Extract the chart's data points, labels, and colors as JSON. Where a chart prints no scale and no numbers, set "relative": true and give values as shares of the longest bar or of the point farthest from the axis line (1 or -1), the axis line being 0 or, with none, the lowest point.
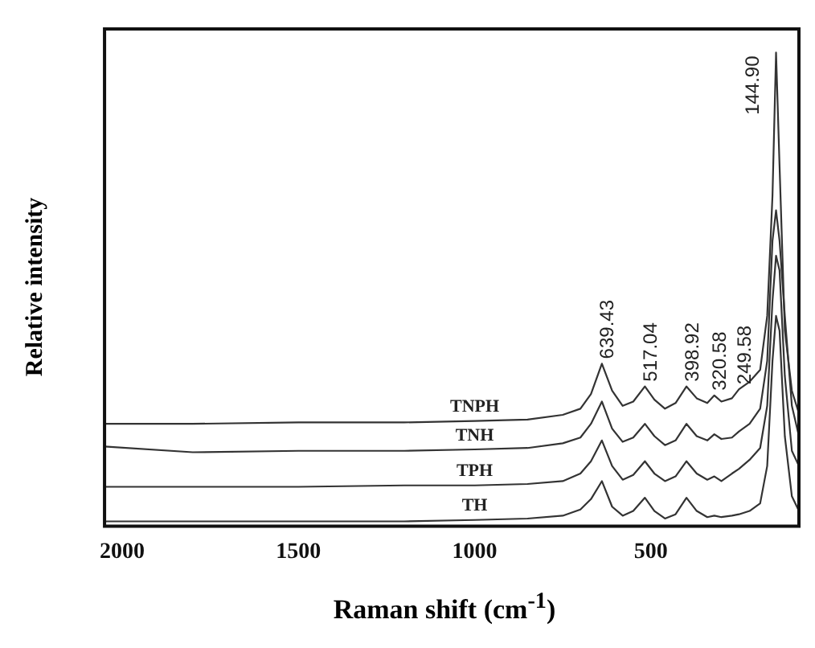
{
  "chart_data": {
    "type": "line",
    "xlabel": "Raman shift (cm$^{-1}$)",
    "ylabel": "Relative intensity",
    "relative": true,
    "xlim": [
      2050,
      80
    ],
    "xticks": [
      2000,
      1500,
      1000,
      500
    ],
    "grid": false,
    "legend": false,
    "marker": "none",
    "line_style": "solid",
    "x": [
      2050,
      1800,
      1500,
      1200,
      1000,
      850,
      750,
      700,
      670,
      639,
      610,
      580,
      550,
      517,
      490,
      460,
      430,
      399,
      370,
      340,
      320,
      300,
      270,
      250,
      220,
      190,
      170,
      155,
      144.9,
      135,
      120,
      100,
      80
    ],
    "series": [
      {
        "name": "TNPH",
        "color": "#333333",
        "values": [
          0.216,
          0.216,
          0.219,
          0.219,
          0.222,
          0.225,
          0.235,
          0.248,
          0.279,
          0.343,
          0.286,
          0.254,
          0.263,
          0.295,
          0.267,
          0.248,
          0.26,
          0.295,
          0.27,
          0.26,
          0.276,
          0.263,
          0.27,
          0.289,
          0.305,
          0.33,
          0.444,
          0.698,
          1,
          0.762,
          0.413,
          0.286,
          0.238
        ]
      },
      {
        "name": "TNH",
        "color": "#333333",
        "values": [
          0.168,
          0.156,
          0.159,
          0.159,
          0.162,
          0.165,
          0.175,
          0.187,
          0.216,
          0.263,
          0.206,
          0.178,
          0.187,
          0.216,
          0.19,
          0.171,
          0.181,
          0.216,
          0.19,
          0.181,
          0.194,
          0.184,
          0.187,
          0.2,
          0.216,
          0.248,
          0.349,
          0.603,
          0.667,
          0.603,
          0.444,
          0.254,
          0.19
        ]
      },
      {
        "name": "TPH",
        "color": "#333333",
        "values": [
          0.083,
          0.083,
          0.083,
          0.086,
          0.086,
          0.089,
          0.095,
          0.111,
          0.137,
          0.181,
          0.127,
          0.098,
          0.108,
          0.137,
          0.111,
          0.095,
          0.105,
          0.137,
          0.111,
          0.098,
          0.105,
          0.095,
          0.111,
          0.121,
          0.14,
          0.165,
          0.254,
          0.476,
          0.571,
          0.54,
          0.317,
          0.159,
          0.127
        ]
      },
      {
        "name": "TH",
        "color": "#333333",
        "values": [
          0.01,
          0.01,
          0.01,
          0.01,
          0.013,
          0.016,
          0.022,
          0.035,
          0.057,
          0.095,
          0.041,
          0.022,
          0.032,
          0.06,
          0.032,
          0.016,
          0.025,
          0.06,
          0.032,
          0.019,
          0.022,
          0.019,
          0.022,
          0.025,
          0.032,
          0.048,
          0.127,
          0.349,
          0.444,
          0.413,
          0.19,
          0.063,
          0.032
        ]
      }
    ],
    "annotations": [
      {
        "text": "639.43",
        "x": 639,
        "y": 0.343
      },
      {
        "text": "517.04",
        "x": 517,
        "y": 0.295
      },
      {
        "text": "398.92",
        "x": 399,
        "y": 0.295
      },
      {
        "text": "320.58",
        "x": 320,
        "y": 0.276
      },
      {
        "text": "249.58",
        "x": 250,
        "y": 0.289
      },
      {
        "text": "144.90",
        "x": 144.9,
        "y": 1
      }
    ]
  }
}
